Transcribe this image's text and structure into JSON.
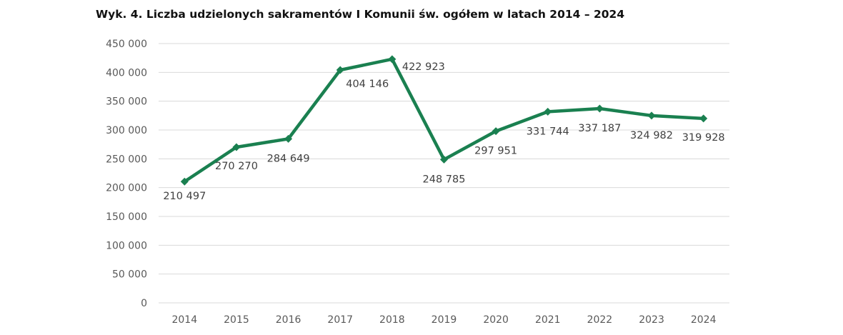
{
  "chart_data": {
    "type": "line",
    "title": "Wyk. 4. Liczba udzielonych sakramentów I Komunii św. ogółem w latach 2014 – 2024",
    "xlabel": "",
    "ylabel": "",
    "categories": [
      "2014",
      "2015",
      "2016",
      "2017",
      "2018",
      "2019",
      "2020",
      "2021",
      "2022",
      "2023",
      "2024"
    ],
    "series": [
      {
        "values": [
          210497,
          270270,
          284649,
          404146,
          422923,
          248785,
          297951,
          331744,
          337187,
          324982,
          319928
        ],
        "labels": [
          "210 497",
          "270 270",
          "284 649",
          "404 146",
          "422 923",
          "248 785",
          "297 951",
          "331 744",
          "337 187",
          "324 982",
          "319 928"
        ],
        "color": "#1a8050"
      }
    ],
    "ylim": [
      0,
      450000
    ],
    "yticks": [
      0,
      50000,
      100000,
      150000,
      200000,
      250000,
      300000,
      350000,
      400000,
      450000
    ],
    "ytick_labels": [
      "0",
      "50 000",
      "100 000",
      "150 000",
      "200 000",
      "250 000",
      "300 000",
      "350 000",
      "400 000",
      "450 000"
    ],
    "grid": true,
    "gridline_color": "#d9d9d9",
    "marker": "diamond",
    "legend": "none"
  }
}
